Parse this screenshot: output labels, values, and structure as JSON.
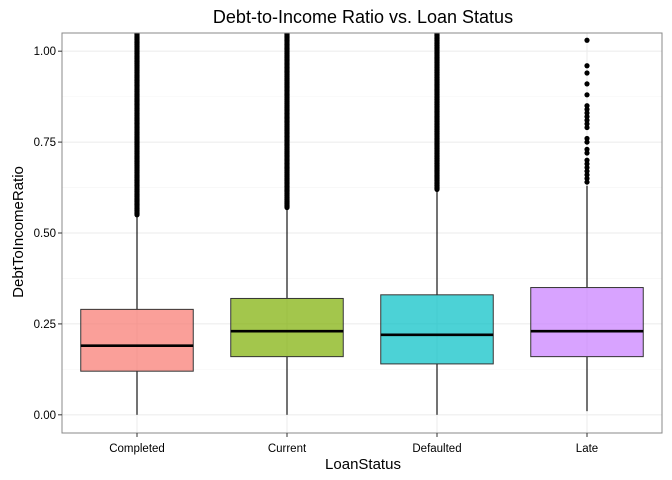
{
  "chart_data": {
    "type": "box",
    "title": "Debt-to-Income Ratio vs. Loan Status",
    "xlabel": "LoanStatus",
    "ylabel": "DebtToIncomeRatio",
    "ylim": [
      -0.05,
      1.05
    ],
    "y_ticks": [
      "0.00",
      "0.25",
      "0.50",
      "0.75",
      "1.00"
    ],
    "grid": true,
    "legend": "none",
    "categories": [
      "Completed",
      "Current",
      "Defaulted",
      "Late"
    ],
    "colors": [
      "#F8766D",
      "#7CAE00",
      "#00BFC4",
      "#C77CFF"
    ],
    "boxes": [
      {
        "category": "Completed",
        "whisker_low": 0.0,
        "q1": 0.12,
        "median": 0.19,
        "q3": 0.29,
        "whisker_high": 0.55,
        "outliers_dense_from": 0.55,
        "outliers_dense_to": 1.05
      },
      {
        "category": "Current",
        "whisker_low": 0.0,
        "q1": 0.16,
        "median": 0.23,
        "q3": 0.32,
        "whisker_high": 0.57,
        "outliers_dense_from": 0.57,
        "outliers_dense_to": 1.05
      },
      {
        "category": "Defaulted",
        "whisker_low": 0.0,
        "q1": 0.14,
        "median": 0.22,
        "q3": 0.33,
        "whisker_high": 0.62,
        "outliers_dense_from": 0.62,
        "outliers_dense_to": 1.05
      },
      {
        "category": "Late",
        "whisker_low": 0.01,
        "q1": 0.16,
        "median": 0.23,
        "q3": 0.35,
        "whisker_high": 0.63,
        "outliers": [
          0.64,
          0.65,
          0.66,
          0.67,
          0.68,
          0.69,
          0.7,
          0.72,
          0.73,
          0.75,
          0.76,
          0.79,
          0.8,
          0.81,
          0.82,
          0.83,
          0.84,
          0.85,
          0.88,
          0.91,
          0.94,
          0.96,
          1.03
        ]
      }
    ]
  }
}
